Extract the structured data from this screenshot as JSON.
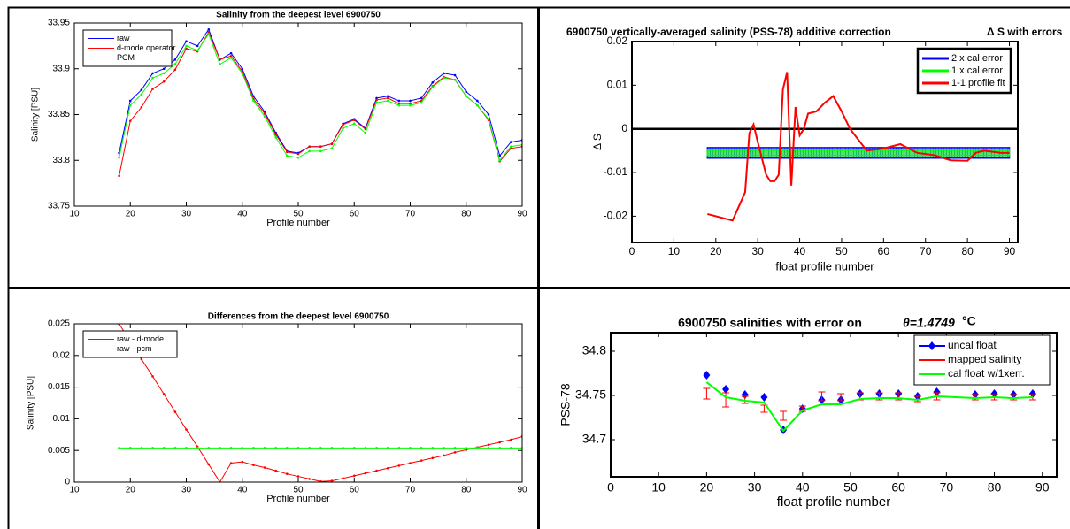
{
  "chart_data": [
    {
      "type": "line",
      "title": "Salinity from the deepest level 6900750",
      "xlabel": "Profile number",
      "ylabel": "Salinity [PSU]",
      "x": [
        18,
        20,
        22,
        24,
        26,
        28,
        30,
        32,
        34,
        36,
        38,
        40,
        42,
        44,
        46,
        48,
        50,
        52,
        54,
        56,
        58,
        60,
        62,
        64,
        66,
        68,
        70,
        72,
        74,
        76,
        78,
        80,
        82,
        84,
        86,
        88,
        90
      ],
      "xlim": [
        10,
        90
      ],
      "xticks": [
        10,
        20,
        30,
        40,
        50,
        60,
        70,
        80,
        90
      ],
      "ylim": [
        33.75,
        33.95
      ],
      "yticks": [
        33.75,
        33.8,
        33.85,
        33.9,
        33.95
      ],
      "legend": "top-left",
      "marker": "dot",
      "series": [
        {
          "name": "raw",
          "color": "#0000ff",
          "values": [
            33.808,
            33.865,
            33.877,
            33.895,
            33.9,
            33.91,
            33.93,
            33.925,
            33.943,
            33.91,
            33.917,
            33.9,
            33.87,
            33.853,
            33.83,
            33.81,
            33.808,
            33.815,
            33.815,
            33.818,
            33.84,
            33.845,
            33.835,
            33.868,
            33.87,
            33.865,
            33.865,
            33.868,
            33.885,
            33.895,
            33.893,
            33.875,
            33.865,
            33.85,
            33.805,
            33.82,
            33.822
          ]
        },
        {
          "name": "d-mode operator",
          "color": "#ff0000",
          "values": [
            33.783,
            33.843,
            33.858,
            33.878,
            33.886,
            33.899,
            33.922,
            33.919,
            33.94,
            33.91,
            33.914,
            33.897,
            33.867,
            33.851,
            33.828,
            33.809,
            33.807,
            33.815,
            33.815,
            33.818,
            33.839,
            33.844,
            33.834,
            33.866,
            33.868,
            33.862,
            33.862,
            33.865,
            33.881,
            33.891,
            33.888,
            33.87,
            33.86,
            33.844,
            33.799,
            33.813,
            33.815
          ]
        },
        {
          "name": "PCM",
          "color": "#00ff00",
          "values": [
            33.803,
            33.86,
            33.872,
            33.89,
            33.895,
            33.905,
            33.925,
            33.92,
            33.938,
            33.905,
            33.912,
            33.895,
            33.865,
            33.848,
            33.825,
            33.805,
            33.803,
            33.81,
            33.81,
            33.813,
            33.835,
            33.84,
            33.83,
            33.863,
            33.865,
            33.86,
            33.86,
            33.863,
            33.88,
            33.89,
            33.888,
            33.87,
            33.86,
            33.845,
            33.8,
            33.815,
            33.817
          ]
        }
      ]
    },
    {
      "type": "line",
      "title": "6900750 vertically-averaged salinity (PSS-78) additive correction",
      "annotation": "Δ S with errors",
      "xlabel": "float profile number",
      "ylabel": "Δ S",
      "xlim": [
        0,
        92
      ],
      "xticks": [
        0,
        10,
        20,
        30,
        40,
        50,
        60,
        70,
        80,
        90
      ],
      "ylim": [
        -0.026,
        0.02
      ],
      "yticks": [
        -0.02,
        -0.01,
        0,
        0.01,
        0.02
      ],
      "hline": 0,
      "legend": "top-right",
      "bands": [
        {
          "name": "2 x cal error",
          "color": "#0000ff",
          "x": [
            18,
            90
          ],
          "lower": -0.0067,
          "upper": -0.0043
        },
        {
          "name": "1 x cal error",
          "color": "#00ff00",
          "x": [
            18,
            90
          ],
          "lower": -0.0061,
          "upper": -0.0049
        }
      ],
      "series": [
        {
          "name": "1-1 profile fit",
          "color": "#ff0000",
          "x": [
            18,
            24,
            27,
            28,
            29,
            30,
            32,
            33,
            34,
            35,
            36,
            37,
            38,
            39,
            40,
            41,
            42,
            44,
            46,
            48,
            50,
            52,
            56,
            60,
            64,
            68,
            72,
            76,
            80,
            82,
            84,
            88,
            90
          ],
          "values": [
            -0.0195,
            -0.021,
            -0.0145,
            -0.001,
            0.001,
            -0.003,
            -0.0105,
            -0.012,
            -0.012,
            -0.0105,
            0.009,
            0.013,
            -0.013,
            0.005,
            -0.0015,
            0,
            0.0035,
            0.004,
            0.006,
            0.0075,
            0.004,
            0,
            -0.005,
            -0.0045,
            -0.0035,
            -0.0055,
            -0.006,
            -0.0072,
            -0.0073,
            -0.0055,
            -0.005,
            -0.0055,
            -0.0055
          ]
        }
      ]
    },
    {
      "type": "line",
      "title": "Differences from the deepest level 6900750",
      "xlabel": "Profile number",
      "ylabel": "Salinity [PSU]",
      "x": [
        18,
        20,
        22,
        24,
        26,
        28,
        30,
        32,
        34,
        36,
        38,
        40,
        42,
        44,
        46,
        48,
        50,
        52,
        54,
        56,
        58,
        60,
        62,
        64,
        66,
        68,
        70,
        72,
        74,
        76,
        78,
        80,
        82,
        84,
        86,
        88,
        90
      ],
      "xlim": [
        10,
        90
      ],
      "xticks": [
        10,
        20,
        30,
        40,
        50,
        60,
        70,
        80,
        90
      ],
      "ylim": [
        0,
        0.025
      ],
      "yticks": [
        0,
        0.005,
        0.01,
        0.015,
        0.02,
        0.025
      ],
      "legend": "top-left",
      "marker": "dot",
      "series": [
        {
          "name": "raw - d-mode",
          "color": "#ff0000",
          "values": [
            0.025,
            0.0222,
            0.0194,
            0.0167,
            0.0139,
            0.0111,
            0.0083,
            0.0056,
            0.0028,
            0,
            0.003,
            0.0032,
            0.0027,
            0.0023,
            0.0018,
            0.0013,
            0.0009,
            0.0005,
            0.0001,
            0.0002,
            0.0006,
            0.001,
            0.0014,
            0.0018,
            0.0022,
            0.0026,
            0.003,
            0.0034,
            0.0038,
            0.0042,
            0.0047,
            0.0051,
            0.0055,
            0.0059,
            0.0063,
            0.0067,
            0.0072
          ]
        },
        {
          "name": "raw - pcm",
          "color": "#00ff00",
          "values": [
            0.0054,
            0.0054,
            0.0054,
            0.0054,
            0.0054,
            0.0054,
            0.0054,
            0.0054,
            0.0054,
            0.0054,
            0.0054,
            0.0054,
            0.0054,
            0.0054,
            0.0054,
            0.0054,
            0.0054,
            0.0054,
            0.0054,
            0.0054,
            0.0054,
            0.0054,
            0.0054,
            0.0054,
            0.0054,
            0.0054,
            0.0054,
            0.0054,
            0.0054,
            0.0054,
            0.0054,
            0.0054,
            0.0054,
            0.0054,
            0.0054,
            0.0054,
            0.0054
          ]
        }
      ]
    },
    {
      "type": "line",
      "title": "6900750 salinities with error on",
      "annotation": "θ=1.4749",
      "annotation_unit": "°C",
      "xlabel": "float profile number",
      "ylabel": "PSS-78",
      "x": [
        20,
        24,
        28,
        32,
        36,
        40,
        44,
        48,
        52,
        56,
        60,
        64,
        68,
        76,
        80,
        84,
        88
      ],
      "xlim": [
        0,
        93
      ],
      "xticks": [
        0,
        10,
        20,
        30,
        40,
        50,
        60,
        70,
        80,
        90
      ],
      "ylim": [
        34.658,
        34.821
      ],
      "yticks": [
        34.7,
        34.75,
        34.8
      ],
      "legend": "top-right",
      "series": [
        {
          "name": "uncal float",
          "color": "#0000ff",
          "marker": "diamond",
          "line": false,
          "values": [
            34.773,
            34.757,
            34.751,
            34.748,
            34.711,
            34.735,
            34.745,
            34.745,
            34.752,
            34.752,
            34.752,
            34.749,
            34.754,
            34.751,
            34.752,
            34.751,
            34.752
          ]
        },
        {
          "name": "mapped salinity",
          "color": "#ff0000",
          "marker": "errorbar",
          "line": false,
          "values": [
            34.752,
            34.745,
            34.745,
            34.735,
            34.727,
            34.735,
            34.749,
            34.748,
            34.749,
            34.749,
            34.749,
            34.746,
            34.749,
            34.748,
            34.748,
            34.748,
            34.748
          ],
          "errors": [
            0.006,
            0.008,
            0.004,
            0.004,
            0.005,
            0.003,
            0.005,
            0.004,
            0.004,
            0.004,
            0.004,
            0.003,
            0.004,
            0.003,
            0.003,
            0.003,
            0.003
          ]
        },
        {
          "name": "cal float w/1xerr.",
          "color": "#00ff00",
          "values": [
            34.765,
            34.748,
            34.744,
            34.742,
            34.71,
            34.733,
            34.74,
            34.74,
            34.746,
            34.747,
            34.747,
            34.745,
            34.749,
            34.747,
            34.748,
            34.747,
            34.748
          ]
        }
      ]
    }
  ]
}
